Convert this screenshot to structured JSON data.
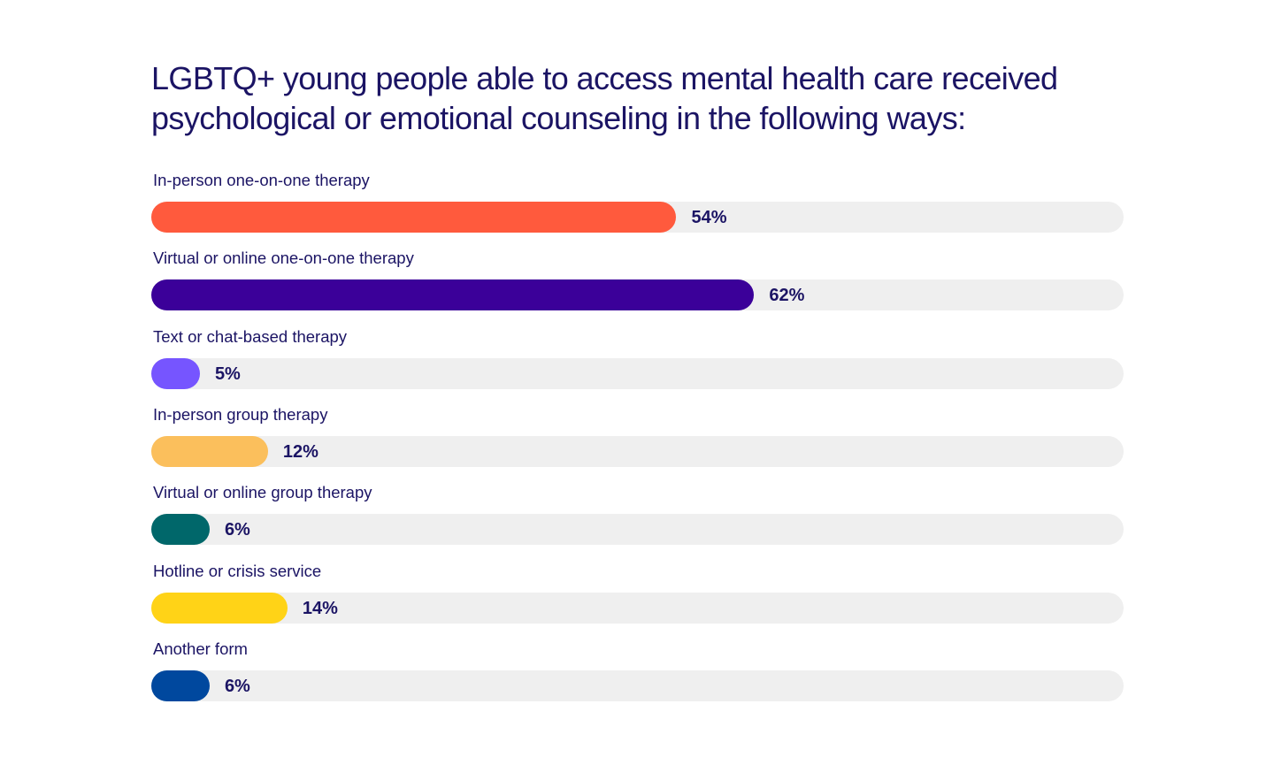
{
  "chart_data": {
    "type": "bar",
    "orientation": "horizontal",
    "title": "LGBTQ+ young people able to access mental health care received psychological or emotional counseling in the following ways:",
    "title_lines": [
      "LGBTQ+ young people able to access mental health care received",
      "psychological or emotional counseling in the following ways:"
    ],
    "xlim": [
      0,
      100
    ],
    "grid": false,
    "legend": "none",
    "track_color": "#efefef",
    "bars": [
      {
        "category": "In-person one-on-one therapy",
        "value": 54,
        "label": "54%",
        "color": "#ff5a3d"
      },
      {
        "category": "Virtual or online one-on-one therapy",
        "value": 62,
        "label": "62%",
        "color": "#3b0099"
      },
      {
        "category": "Text or chat-based therapy",
        "value": 5,
        "label": "5%",
        "color": "#7655ff"
      },
      {
        "category": "In-person group therapy",
        "value": 12,
        "label": "12%",
        "color": "#fbbf5c"
      },
      {
        "category": "Virtual or online group therapy",
        "value": 6,
        "label": "6%",
        "color": "#00676a"
      },
      {
        "category": "Hotline or crisis service",
        "value": 14,
        "label": "14%",
        "color": "#ffd317"
      },
      {
        "category": "Another form",
        "value": 6,
        "label": "6%",
        "color": "#00489e"
      }
    ]
  }
}
